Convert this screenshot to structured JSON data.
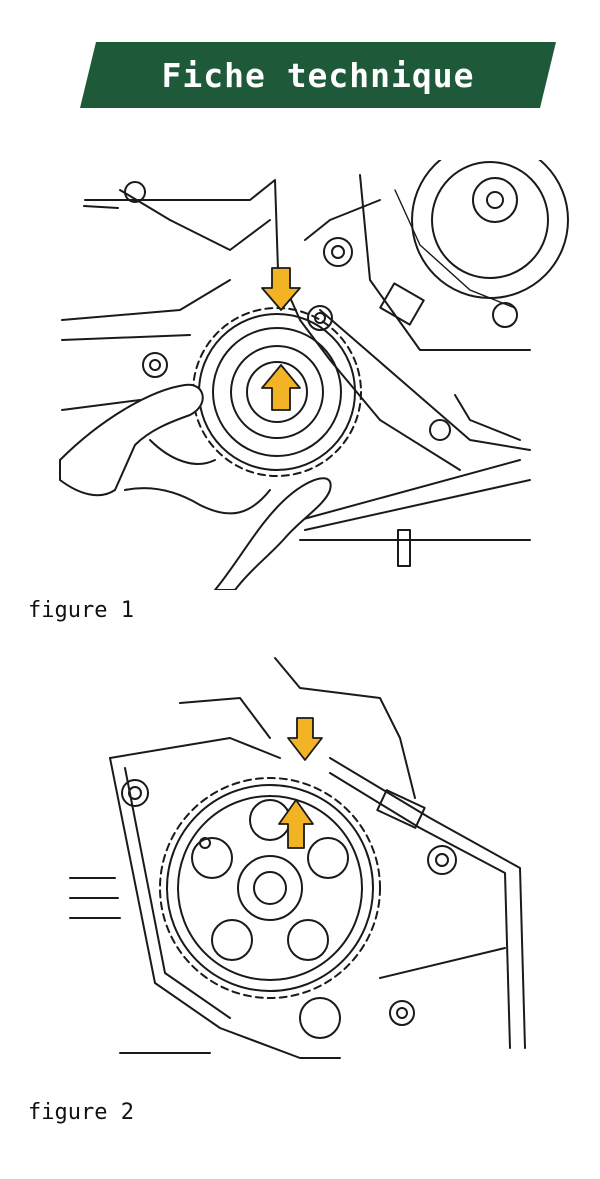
{
  "header": {
    "title": "Fiche technique",
    "banner_color": "#1e5a3a"
  },
  "figures": [
    {
      "caption": "figure 1",
      "arrow_color": "#f2b325"
    },
    {
      "caption": "figure 2",
      "arrow_color": "#f2b325"
    }
  ]
}
